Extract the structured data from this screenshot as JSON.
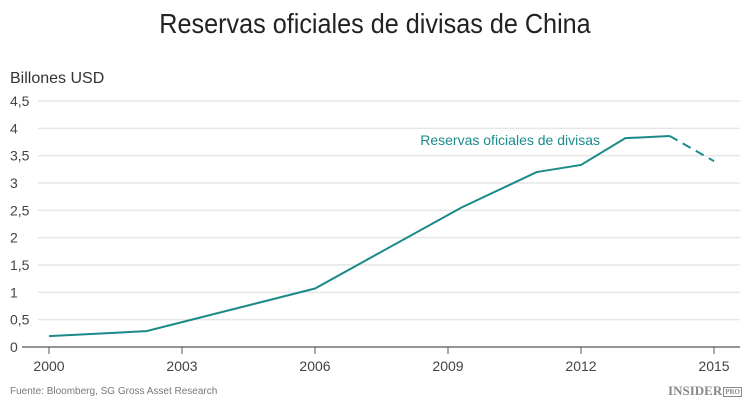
{
  "chart_data": {
    "type": "line",
    "title": "Reservas oficiales de divisas de China",
    "ylabel": "Billones USD",
    "xlabel": "",
    "xlim": [
      2000,
      2015
    ],
    "ylim": [
      0,
      4.5
    ],
    "x_ticks": [
      "2000",
      "2003",
      "2006",
      "2009",
      "2012",
      "2015"
    ],
    "y_ticks": [
      "0",
      "0,5",
      "1",
      "1,5",
      "2",
      "2,5",
      "3",
      "3,5",
      "4",
      "4,5"
    ],
    "grid": true,
    "series": [
      {
        "name": "Reservas oficiales de divisas",
        "color": "#1b8a8a",
        "x": [
          2000,
          2002.2,
          2006,
          2009.3,
          2011,
          2012,
          2013,
          2014
        ],
        "y": [
          0.2,
          0.29,
          1.07,
          2.55,
          3.2,
          3.33,
          3.82,
          3.86
        ],
        "projection": {
          "x": [
            2014,
            2015
          ],
          "y": [
            3.86,
            3.4
          ],
          "style": "dashed"
        }
      }
    ]
  },
  "source": "Fuente: Bloomberg, SG Gross Asset Research",
  "logo": {
    "main": "INSIDER",
    "sub": "PRO"
  }
}
